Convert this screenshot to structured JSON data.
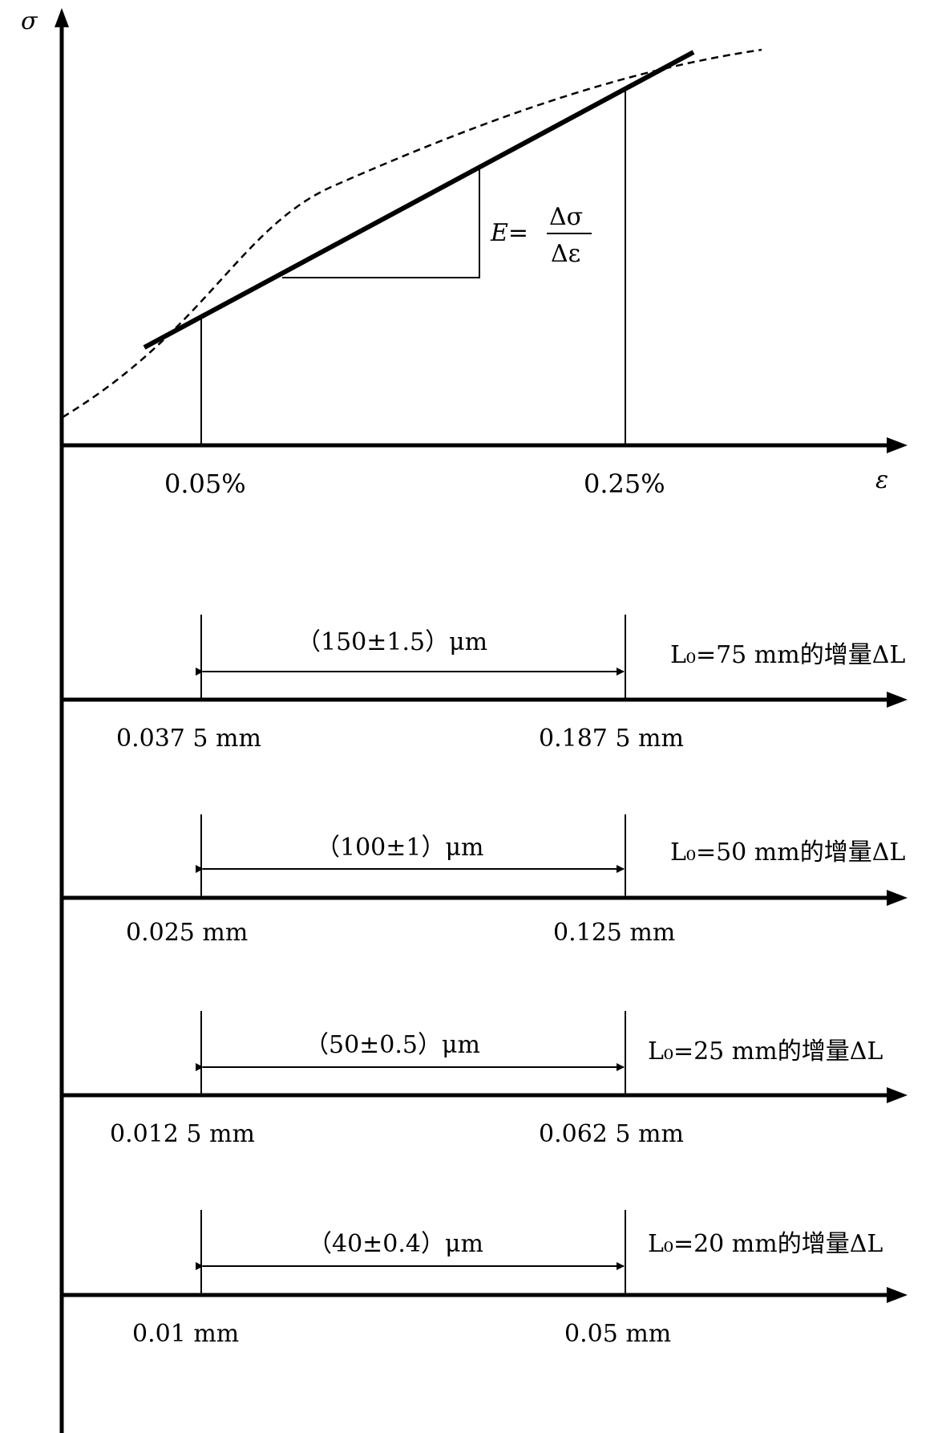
{
  "axes": {
    "y_label": "σ",
    "x_label": "ε"
  },
  "stress_strain": {
    "strain_marks": [
      "0.05%",
      "0.25%"
    ],
    "formula": {
      "lhs": "E=",
      "numerator": "Δσ",
      "denominator": "Δε"
    }
  },
  "scales": [
    {
      "range_label": "（150±1.5）μm",
      "right_label": "L₀=75 mm的增量ΔL",
      "left_value": "0.037 5 mm",
      "right_value": "0.187 5 mm"
    },
    {
      "range_label": "（100±1）μm",
      "right_label": "L₀=50 mm的增量ΔL",
      "left_value": "0.025 mm",
      "right_value": "0.125 mm"
    },
    {
      "range_label": "（50±0.5）μm",
      "right_label": "L₀=25 mm的增量ΔL",
      "left_value": "0.012 5 mm",
      "right_value": "0.062 5 mm"
    },
    {
      "range_label": "（40±0.4）μm",
      "right_label": "L₀=20 mm的增量ΔL",
      "left_value": "0.01 mm",
      "right_value": "0.05 mm"
    }
  ]
}
